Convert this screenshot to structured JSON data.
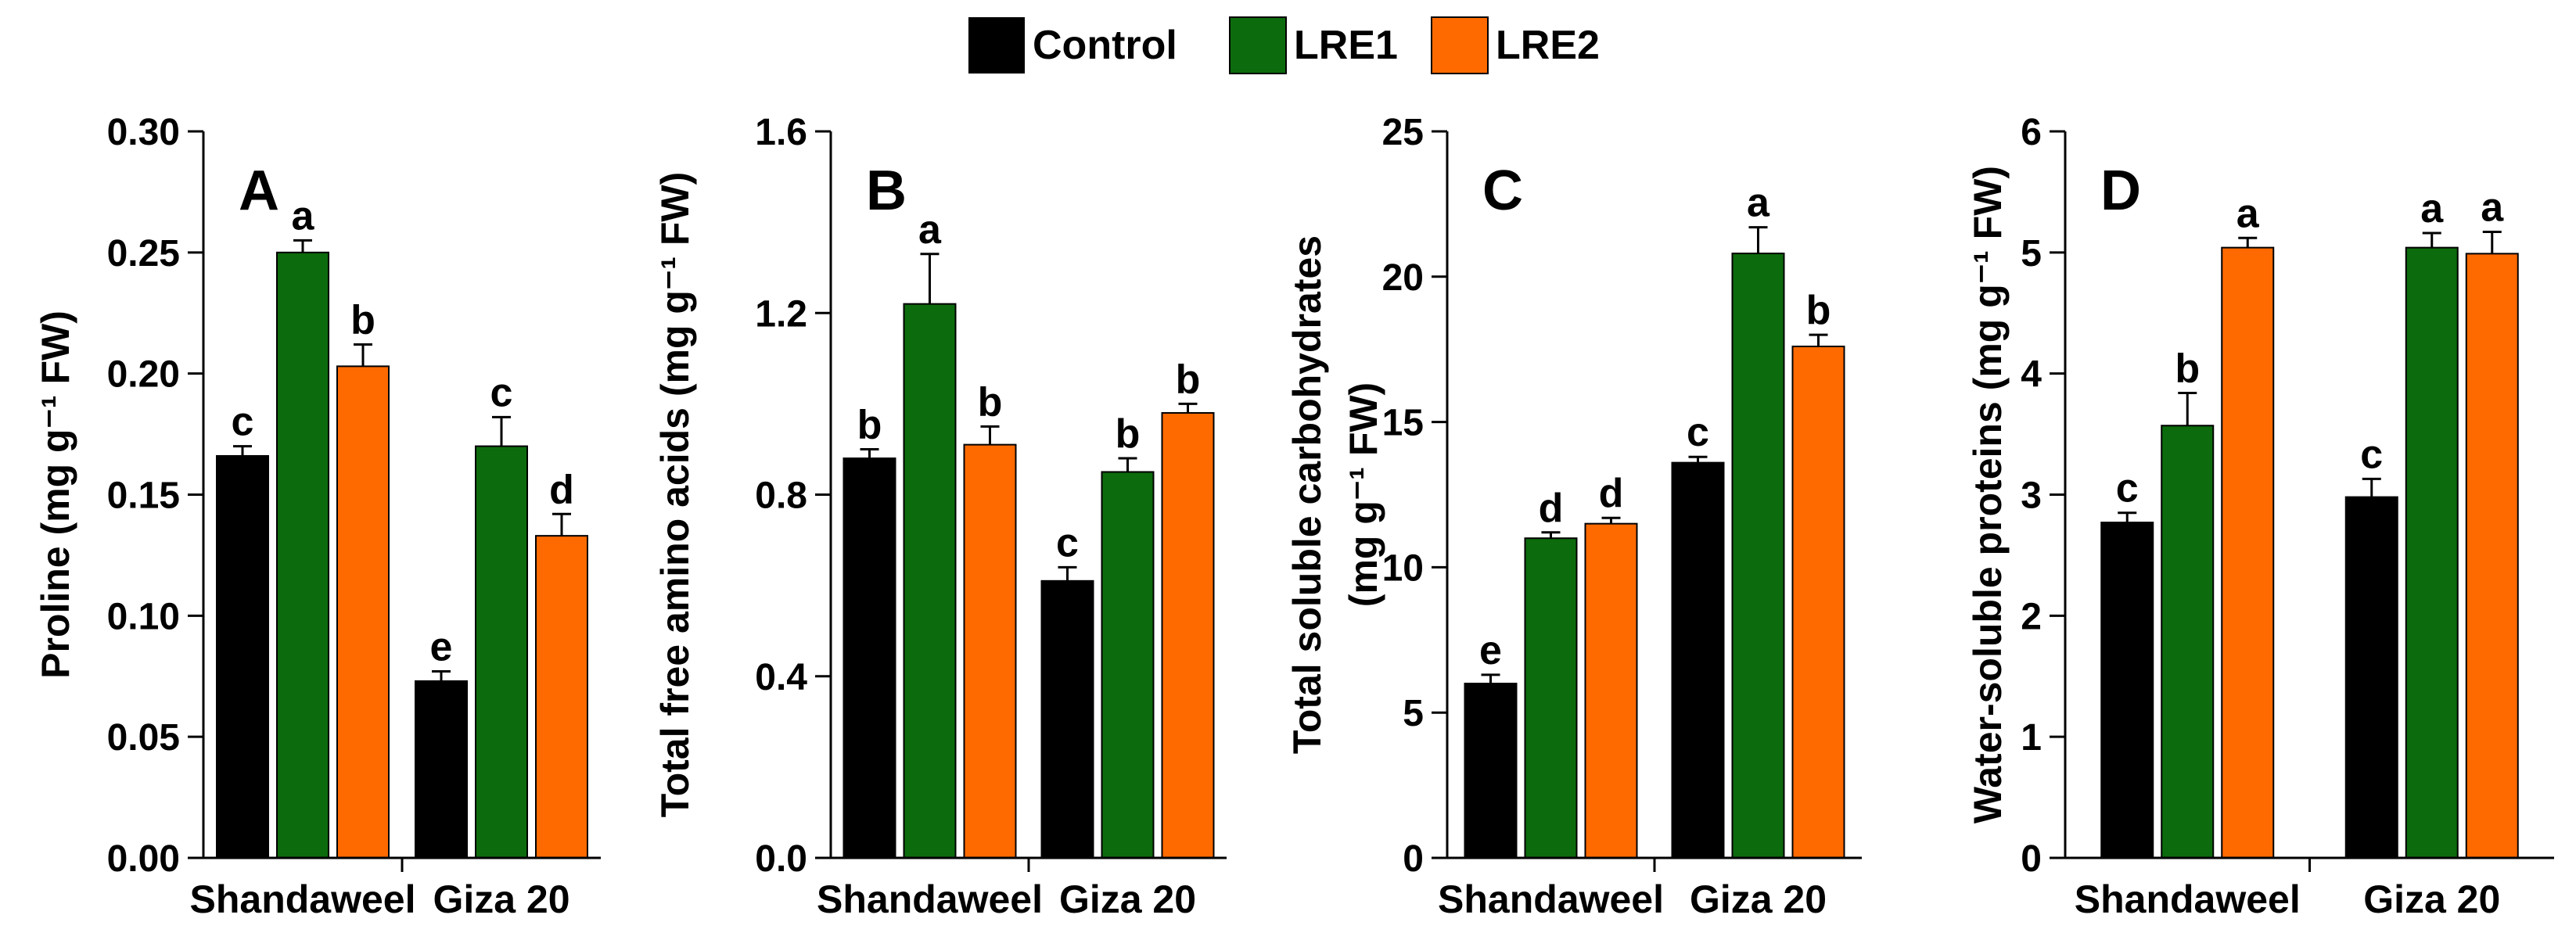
{
  "legend": {
    "items": [
      {
        "label": "Control",
        "color": "#000000"
      },
      {
        "label": "LRE1",
        "color": "#0c6b0c"
      },
      {
        "label": "LRE2",
        "color": "#ff6a00"
      }
    ]
  },
  "chart_data": [
    {
      "type": "bar",
      "panel_letter": "A",
      "title": "",
      "ylabel_lines": [
        "Proline (mg g⁻¹ FW)"
      ],
      "xlabel": "",
      "categories": [
        "Shandaweel",
        "Giza 20"
      ],
      "ylim": [
        0,
        0.3
      ],
      "yticks": [
        "0.00",
        "0.05",
        "0.10",
        "0.15",
        "0.20",
        "0.25",
        "0.30"
      ],
      "series": [
        {
          "name": "Control",
          "values": [
            0.166,
            0.073
          ],
          "errors": [
            0.004,
            0.004
          ],
          "letters": [
            "c",
            "e"
          ]
        },
        {
          "name": "LRE1",
          "values": [
            0.25,
            0.17
          ],
          "errors": [
            0.005,
            0.012
          ],
          "letters": [
            "a",
            "c"
          ]
        },
        {
          "name": "LRE2",
          "values": [
            0.203,
            0.133
          ],
          "errors": [
            0.009,
            0.009
          ],
          "letters": [
            "b",
            "d"
          ]
        }
      ]
    },
    {
      "type": "bar",
      "panel_letter": "B",
      "title": "",
      "ylabel_lines": [
        "Total free amino acids (mg g⁻¹ FW)"
      ],
      "xlabel": "",
      "categories": [
        "Shandaweel",
        "Giza 20"
      ],
      "ylim": [
        0,
        1.6
      ],
      "yticks": [
        "0.0",
        "0.4",
        "0.8",
        "1.2",
        "1.6"
      ],
      "series": [
        {
          "name": "Control",
          "values": [
            0.88,
            0.61
          ],
          "errors": [
            0.02,
            0.03
          ],
          "letters": [
            "b",
            "c"
          ]
        },
        {
          "name": "LRE1",
          "values": [
            1.22,
            0.85
          ],
          "errors": [
            0.11,
            0.03
          ],
          "letters": [
            "a",
            "b"
          ]
        },
        {
          "name": "LRE2",
          "values": [
            0.91,
            0.98
          ],
          "errors": [
            0.04,
            0.02
          ],
          "letters": [
            "b",
            "b"
          ]
        }
      ]
    },
    {
      "type": "bar",
      "panel_letter": "C",
      "title": "",
      "ylabel_lines": [
        "Total soluble carbohydrates",
        "(mg g⁻¹ FW)"
      ],
      "xlabel": "",
      "categories": [
        "Shandaweel",
        "Giza 20"
      ],
      "ylim": [
        0,
        25
      ],
      "yticks": [
        "0",
        "5",
        "10",
        "15",
        "20",
        "25"
      ],
      "series": [
        {
          "name": "Control",
          "values": [
            6.0,
            13.6
          ],
          "errors": [
            0.3,
            0.2
          ],
          "letters": [
            "e",
            "c"
          ]
        },
        {
          "name": "LRE1",
          "values": [
            11.0,
            20.8
          ],
          "errors": [
            0.2,
            0.9
          ],
          "letters": [
            "d",
            "a"
          ]
        },
        {
          "name": "LRE2",
          "values": [
            11.5,
            17.6
          ],
          "errors": [
            0.2,
            0.4
          ],
          "letters": [
            "d",
            "b"
          ]
        }
      ]
    },
    {
      "type": "bar",
      "panel_letter": "D",
      "title": "",
      "ylabel_lines": [
        "Water-soluble proteins (mg g⁻¹ FW)"
      ],
      "xlabel": "",
      "categories": [
        "Shandaweel",
        "Giza 20"
      ],
      "ylim": [
        0,
        6
      ],
      "yticks": [
        "0",
        "1",
        "2",
        "3",
        "4",
        "5",
        "6"
      ],
      "series": [
        {
          "name": "Control",
          "values": [
            2.77,
            2.98
          ],
          "errors": [
            0.08,
            0.15
          ],
          "letters": [
            "c",
            "c"
          ]
        },
        {
          "name": "LRE1",
          "values": [
            3.57,
            5.04
          ],
          "errors": [
            0.27,
            0.12
          ],
          "letters": [
            "b",
            "a"
          ]
        },
        {
          "name": "LRE2",
          "values": [
            5.04,
            4.99
          ],
          "errors": [
            0.08,
            0.18
          ],
          "letters": [
            "a",
            "a"
          ]
        }
      ]
    }
  ]
}
